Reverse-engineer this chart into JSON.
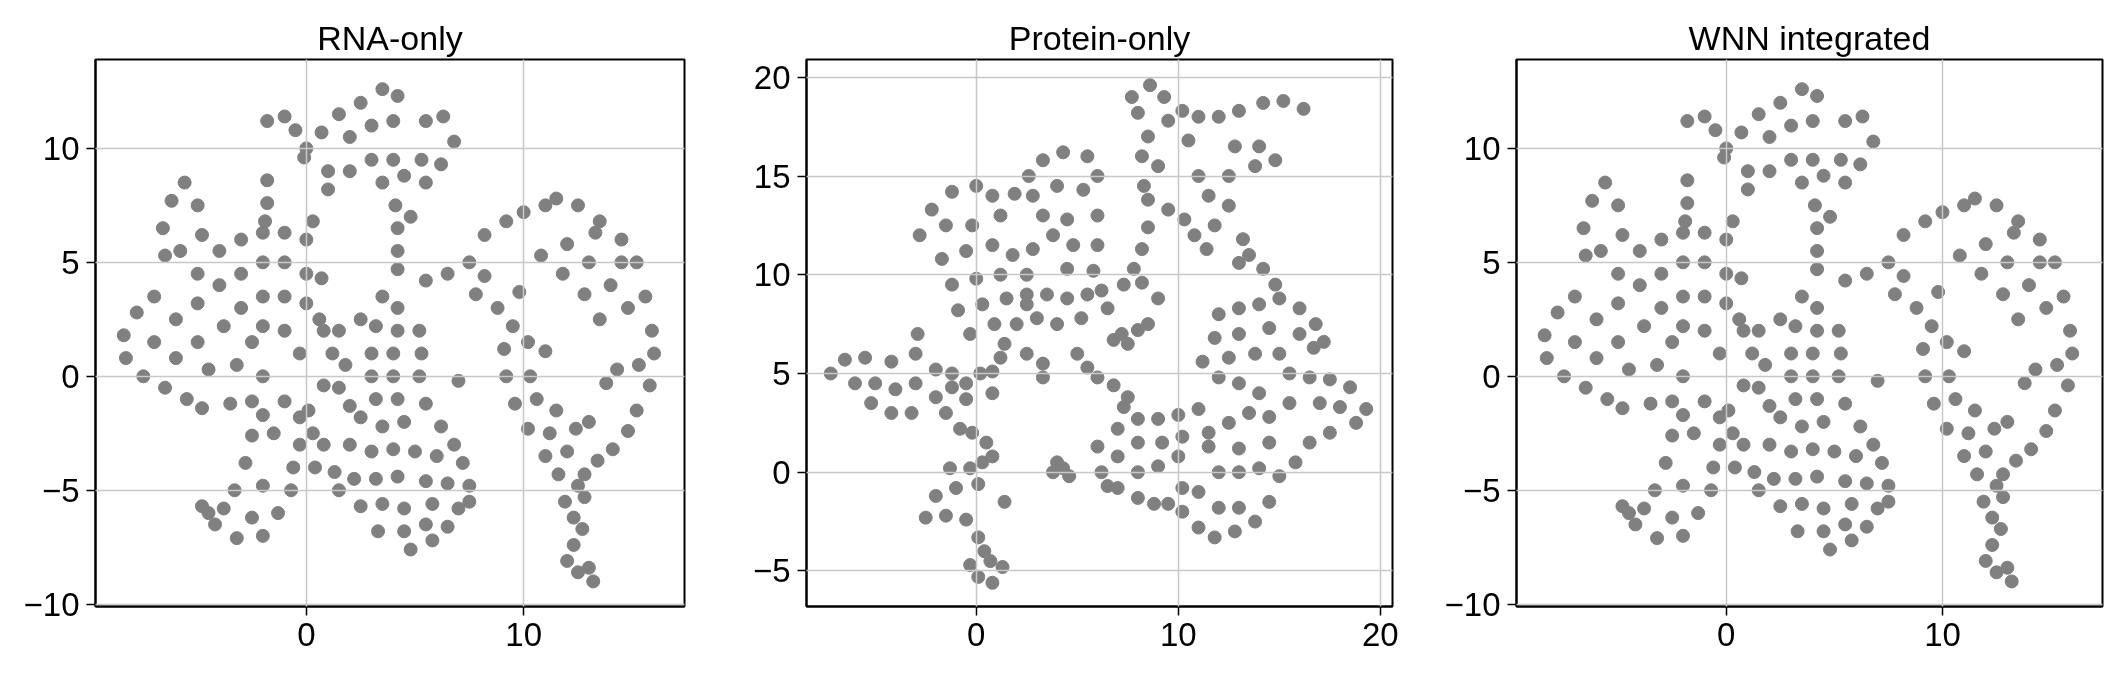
{
  "chart_data": [
    {
      "type": "scatter",
      "title": "RNA-only",
      "color": "#808080",
      "marker": "circle",
      "grid": true,
      "xlim": [
        -9.7,
        17.4
      ],
      "ylim": [
        -10.1,
        13.9
      ],
      "xticks": [
        0,
        10
      ],
      "yticks": [
        -10,
        -5,
        0,
        5,
        10
      ],
      "x": [
        1.5,
        2.5,
        3.5,
        4.2,
        2.0,
        3.0,
        4.0,
        3.0,
        4.0,
        3.5,
        4.5,
        5.3,
        5.5,
        6.3,
        6.8,
        6.2,
        5.5,
        2.0,
        1.0,
        1.0,
        0.7,
        -1.8,
        -1.0,
        -0.5,
        0.0,
        -0.1,
        4.1,
        4.2,
        4.2,
        4.2,
        4.8,
        -8.4,
        -8.3,
        -7.8,
        -7.5,
        -7.0,
        -7.0,
        -6.5,
        -6.0,
        -6.0,
        -5.5,
        -5.0,
        -5.0,
        -4.8,
        -4.5,
        -3.8,
        -3.5,
        -3.2,
        -2.5,
        -2.5,
        -2.0,
        -5.0,
        -4.0,
        -4.0,
        -3.0,
        -3.0,
        -3.0,
        -2.0,
        -2.0,
        -2.0,
        -2.0,
        -1.0,
        -1.0,
        -1.0,
        -1.0,
        0.0,
        0.0,
        0.0,
        0.7,
        0.6,
        -0.3,
        -6.6,
        -6.2,
        -5.6,
        -5.0,
        -4.8,
        -5.8,
        -6.5,
        -1.8,
        -1.8,
        -1.9,
        0.3,
        3.5,
        4.2,
        3.2,
        4.2,
        5.2,
        3.0,
        4.0,
        5.3,
        3.0,
        4.0,
        5.2,
        3.2,
        4.2,
        5.5,
        3.5,
        4.5,
        6.2,
        6.8,
        2.0,
        3.0,
        4.0,
        5.0,
        6.0,
        7.2,
        1.3,
        2.2,
        3.2,
        4.2,
        5.5,
        6.5,
        7.5,
        1.5,
        2.5,
        3.5,
        4.5,
        5.8,
        7.0,
        7.5,
        3.3,
        4.5,
        5.5,
        6.5,
        4.8,
        5.8,
        1.2,
        1.8,
        1.5,
        2.0,
        2.5,
        1.5,
        2.5,
        0.8,
        0.8,
        7.0,
        -1.0,
        -2.0,
        -0.3,
        -2.5,
        -1.5,
        -0.3,
        -2.8,
        -0.6,
        -2.0,
        -0.7,
        -3.3,
        -1.3,
        -2.5,
        -3.8,
        -4.8,
        -4.2,
        -3.2,
        -2.0,
        -4.5,
        0.1,
        0.3,
        0.8,
        0.4,
        5.5,
        6.5,
        7.5,
        8.2,
        9.2,
        10.0,
        11.0,
        11.5,
        12.5,
        13.5,
        14.5,
        15.2,
        15.6,
        15.9,
        16.0,
        10.8,
        11.8,
        12.8,
        13.5,
        12.0,
        13.0,
        14.0,
        14.8,
        13.3,
        14.5,
        15.3,
        14.3,
        13.8,
        15.8,
        15.2,
        14.8,
        14.1,
        13.4,
        12.8,
        9.1,
        9.2,
        10.3,
        9.6,
        10.6,
        11.5,
        10.2,
        11.2,
        12.4,
        13.0,
        11.0,
        12.0,
        11.6,
        12.5,
        11.9,
        12.8,
        12.3,
        12.7,
        12.3,
        12.0,
        12.5,
        13.2,
        13.0,
        8.2,
        8.8,
        9.5,
        10.2,
        7.8,
        11.0,
        9.8
      ],
      "values": [
        11.5,
        12.0,
        12.6,
        12.3,
        10.5,
        11.0,
        11.2,
        9.5,
        9.5,
        8.5,
        8.8,
        9.5,
        11.2,
        11.4,
        10.3,
        9.3,
        8.5,
        9.0,
        9.0,
        8.2,
        10.7,
        11.2,
        11.4,
        10.8,
        10.0,
        9.6,
        7.5,
        6.5,
        5.5,
        4.7,
        7.0,
        1.8,
        0.8,
        2.8,
        0.0,
        3.5,
        1.5,
        -0.5,
        2.5,
        0.8,
        -1.0,
        3.2,
        1.5,
        -1.4,
        0.3,
        2.2,
        -1.2,
        0.5,
        -1.1,
        1.5,
        0.0,
        4.5,
        5.5,
        4.0,
        6.0,
        4.5,
        3.0,
        6.3,
        5.0,
        3.5,
        2.2,
        6.3,
        5.0,
        3.5,
        2.0,
        6.0,
        4.5,
        3.2,
        4.3,
        2.5,
        1.0,
        6.5,
        7.7,
        8.5,
        7.5,
        6.2,
        5.5,
        5.3,
        8.6,
        7.6,
        6.8,
        6.8,
        3.5,
        3.0,
        2.2,
        2.0,
        2.0,
        1.0,
        1.0,
        1.0,
        0.0,
        0.0,
        0.0,
        -1.0,
        -1.0,
        -1.2,
        -2.2,
        -2.0,
        -2.2,
        -3.0,
        -3.0,
        -3.3,
        -3.2,
        -3.3,
        -3.5,
        -3.8,
        -4.2,
        -4.5,
        -4.5,
        -4.4,
        -4.6,
        -4.7,
        -4.8,
        -5.0,
        -5.7,
        -5.6,
        -5.8,
        -5.6,
        -5.8,
        -5.5,
        -6.8,
        -6.8,
        -6.5,
        -6.6,
        -7.6,
        -7.2,
        1.0,
        0.5,
        -0.5,
        -1.3,
        -1.8,
        2.0,
        2.5,
        2.0,
        -0.4,
        -0.2,
        -1.1,
        -1.7,
        -1.8,
        -2.6,
        -2.5,
        -3.0,
        -3.8,
        -4.0,
        -4.8,
        -5.0,
        -5.0,
        -6.0,
        -6.2,
        -5.8,
        -5.7,
        -6.5,
        -7.1,
        -7.0,
        -6.0,
        -1.5,
        -2.5,
        -3.0,
        -4.0,
        4.2,
        4.5,
        5.0,
        6.2,
        6.8,
        7.2,
        7.5,
        7.8,
        7.5,
        6.8,
        6.0,
        5.0,
        3.5,
        2.0,
        1.0,
        5.3,
        4.5,
        3.6,
        2.5,
        5.8,
        5.0,
        4.0,
        3.0,
        6.3,
        5.0,
        0.5,
        0.3,
        -0.3,
        -0.4,
        -1.5,
        -2.4,
        -3.2,
        -3.7,
        -4.3,
        1.2,
        0.0,
        0.0,
        -1.2,
        -1.0,
        -1.5,
        -2.3,
        -2.5,
        -2.3,
        -2.0,
        -3.5,
        -3.3,
        -4.3,
        -4.8,
        -5.5,
        -5.3,
        -6.2,
        -6.7,
        -7.4,
        -8.1,
        -8.6,
        -9.0,
        -8.4,
        4.4,
        3.0,
        2.2,
        1.5,
        3.6,
        1.1,
        3.7
      ]
    },
    {
      "type": "scatter",
      "title": "Protein-only",
      "color": "#808080",
      "marker": "circle",
      "grid": true,
      "xlim": [
        -8.4,
        20.6
      ],
      "ylim": [
        -6.8,
        20.9
      ],
      "xticks": [
        0,
        10,
        20
      ],
      "yticks": [
        -5,
        0,
        5,
        10,
        15,
        20
      ],
      "x": [
        7.7,
        8.6,
        9.3,
        8.0,
        8.5,
        9.5,
        10.2,
        11.0,
        12.0,
        13.0,
        14.2,
        15.2,
        16.2,
        8.2,
        9.0,
        10.5,
        12.8,
        14.0,
        14.8,
        11.0,
        12.5,
        13.8,
        11.5,
        12.5,
        11.8,
        11.4,
        8.3,
        8.5,
        9.5,
        10.3,
        10.8,
        -2.8,
        -2.2,
        -1.2,
        0.0,
        0.8,
        1.2,
        -1.5,
        -0.2,
        -1.7,
        -0.5,
        0.8,
        1.8,
        -1.2,
        0.0,
        1.2,
        2.5,
        -0.9,
        0.3,
        1.5,
        2.5,
        -0.3,
        0.9,
        2.0,
        2.6,
        3.3,
        4.3,
        5.5,
        6.0,
        2.8,
        4.0,
        5.3,
        3.3,
        4.5,
        6.0,
        3.8,
        4.8,
        6.0,
        4.5,
        5.8,
        2.8,
        1.9,
        2.5,
        3.5,
        4.5,
        5.5,
        6.2,
        3.0,
        4.0,
        5.2,
        6.5,
        7.2,
        7.5,
        8.0,
        8.5,
        9.0,
        8.2,
        7.3,
        1.4,
        1.2,
        2.5,
        3.3,
        3.3,
        5.0,
        5.5,
        6.0,
        6.8,
        7.5,
        7.3,
        6.8,
        7.8,
        8.2,
        8.5,
        -7.2,
        -6.5,
        -6.0,
        -5.5,
        -5.0,
        -5.2,
        -4.2,
        -4.0,
        -4.2,
        -3.0,
        -2.9,
        -3.0,
        -3.2,
        -2.0,
        -2.0,
        -1.5,
        -1.2,
        -1.2,
        -0.5,
        0.2,
        0.8,
        0.8,
        -0.5,
        -0.8,
        -0.2,
        0.5,
        0.8,
        0.3,
        -1.3,
        -0.3,
        -2.0,
        -1.0,
        0.1,
        -2.5,
        -1.5,
        -0.5,
        0.1,
        0.4,
        -0.3,
        0.7,
        1.3,
        0.1,
        0.8,
        1.4,
        4.0,
        3.8,
        4.3,
        4.6,
        6.0,
        6.2,
        7.0,
        7.0,
        7.0,
        8.0,
        8.0,
        8.0,
        8.0,
        9.0,
        9.2,
        9.0,
        6.5,
        10.0,
        11.0,
        10.2,
        10.0,
        8.8,
        9.5,
        10.2,
        10.2,
        11.0,
        11.8,
        12.8,
        13.8,
        14.5,
        15.0,
        11.0,
        12.0,
        13.0,
        12.0,
        13.0,
        14.0,
        11.5,
        13.0,
        14.5,
        12.0,
        13.0,
        14.0,
        15.0,
        16.0,
        16.8,
        17.2,
        11.8,
        13.0,
        14.5,
        16.0,
        11.2,
        12.5,
        13.8,
        15.0,
        16.7,
        15.5,
        16.5,
        17.5,
        18.5,
        19.3,
        18.8,
        17.5,
        16.5,
        15.8,
        15.5,
        17.0,
        18.0,
        14.0,
        13.0,
        12.0,
        13.5,
        14.5,
        12.5,
        11.5,
        13.2,
        13.5,
        13.0,
        14.2,
        14.8
      ],
      "values": [
        19.0,
        19.6,
        19.0,
        18.2,
        17.0,
        17.8,
        18.3,
        18.0,
        18.0,
        18.3,
        18.7,
        18.8,
        18.4,
        16.0,
        15.5,
        16.8,
        16.5,
        16.5,
        15.8,
        15.0,
        15.0,
        15.5,
        14.0,
        13.5,
        12.5,
        11.3,
        14.5,
        13.8,
        13.3,
        12.8,
        12.0,
        12.0,
        13.3,
        14.2,
        14.5,
        14.0,
        13.0,
        12.5,
        12.5,
        10.8,
        11.2,
        11.5,
        11.0,
        9.5,
        9.8,
        10.0,
        10.0,
        8.2,
        8.5,
        8.8,
        8.5,
        7.0,
        7.5,
        7.5,
        15.0,
        15.8,
        16.2,
        16.0,
        15.0,
        14.0,
        14.5,
        14.3,
        13.0,
        12.8,
        13.0,
        12.0,
        11.5,
        11.5,
        10.3,
        10.2,
        11.3,
        14.1,
        9.0,
        9.0,
        8.8,
        9.0,
        9.2,
        7.8,
        7.5,
        7.8,
        8.3,
        7.0,
        6.5,
        7.2,
        7.5,
        8.8,
        9.6,
        9.5,
        6.5,
        5.8,
        6.0,
        5.5,
        4.8,
        6.0,
        5.3,
        4.8,
        4.4,
        3.8,
        3.3,
        6.7,
        10.3,
        11.3,
        12.4,
        5.0,
        5.7,
        4.5,
        5.8,
        4.5,
        3.5,
        5.6,
        4.2,
        3.0,
        6.0,
        7.0,
        4.5,
        3.0,
        5.2,
        3.8,
        3.0,
        4.3,
        5.0,
        4.5,
        5.0,
        5.1,
        4.0,
        3.7,
        2.2,
        2.0,
        1.5,
        0.8,
        0.5,
        0.2,
        0.2,
        -1.2,
        -0.8,
        -0.6,
        -2.3,
        -2.2,
        -2.4,
        -3.3,
        -4.0,
        -4.7,
        -4.5,
        -4.8,
        -5.3,
        -5.6,
        -1.5,
        0.5,
        0.0,
        0.2,
        -0.2,
        1.3,
        0.0,
        2.2,
        0.8,
        -0.8,
        2.7,
        1.5,
        0.0,
        -1.3,
        2.7,
        1.5,
        0.3,
        -0.7,
        2.9,
        3.2,
        1.8,
        0.8,
        -1.6,
        -1.6,
        -0.8,
        -2.0,
        -2.8,
        -3.3,
        -3.0,
        -2.5,
        -1.5,
        -0.2,
        -1.0,
        -1.8,
        -1.8,
        0.0,
        0.0,
        0.2,
        1.3,
        1.2,
        1.5,
        8.0,
        8.3,
        8.5,
        8.8,
        8.3,
        7.5,
        6.6,
        6.8,
        7.0,
        7.3,
        7.0,
        5.6,
        5.8,
        6.0,
        6.0,
        6.3,
        5.0,
        4.8,
        4.7,
        4.3,
        3.2,
        2.5,
        2.0,
        1.5,
        0.5,
        3.5,
        3.5,
        3.3,
        4.0,
        4.5,
        4.8,
        3.0,
        2.8,
        2.5,
        2.0,
        11.8,
        11.0,
        10.6,
        10.3,
        9.5
      ]
    },
    {
      "type": "scatter",
      "title": "WNN integrated",
      "color": "#808080",
      "marker": "circle",
      "grid": true,
      "xlim": [
        -9.7,
        17.4
      ],
      "ylim": [
        -10.1,
        13.9
      ],
      "xticks": [
        0,
        10
      ],
      "yticks": [
        -10,
        -5,
        0,
        5,
        10
      ],
      "x": [
        1.5,
        2.5,
        3.5,
        4.2,
        2.0,
        3.0,
        4.0,
        3.0,
        4.0,
        3.5,
        4.5,
        5.3,
        5.5,
        6.3,
        6.8,
        6.2,
        5.5,
        2.0,
        1.0,
        1.0,
        0.7,
        -1.8,
        -1.0,
        -0.5,
        0.0,
        -0.1,
        4.1,
        4.2,
        4.2,
        4.2,
        4.8,
        -8.4,
        -8.3,
        -7.8,
        -7.5,
        -7.0,
        -7.0,
        -6.5,
        -6.0,
        -6.0,
        -5.5,
        -5.0,
        -5.0,
        -4.8,
        -4.5,
        -3.8,
        -3.5,
        -3.2,
        -2.5,
        -2.5,
        -2.0,
        -5.0,
        -4.0,
        -4.0,
        -3.0,
        -3.0,
        -3.0,
        -2.0,
        -2.0,
        -2.0,
        -2.0,
        -1.0,
        -1.0,
        -1.0,
        -1.0,
        0.0,
        0.0,
        0.0,
        0.7,
        0.6,
        -0.3,
        -6.6,
        -6.2,
        -5.6,
        -5.0,
        -4.8,
        -5.8,
        -6.5,
        -1.8,
        -1.8,
        -1.9,
        0.3,
        3.5,
        4.2,
        3.2,
        4.2,
        5.2,
        3.0,
        4.0,
        5.3,
        3.0,
        4.0,
        5.2,
        3.2,
        4.2,
        5.5,
        3.5,
        4.5,
        6.2,
        6.8,
        2.0,
        3.0,
        4.0,
        5.0,
        6.0,
        7.2,
        1.3,
        2.2,
        3.2,
        4.2,
        5.5,
        6.5,
        7.5,
        1.5,
        2.5,
        3.5,
        4.5,
        5.8,
        7.0,
        7.5,
        3.3,
        4.5,
        5.5,
        6.5,
        4.8,
        5.8,
        1.2,
        1.8,
        1.5,
        2.0,
        2.5,
        1.5,
        2.5,
        0.8,
        0.8,
        7.0,
        -1.0,
        -2.0,
        -0.3,
        -2.5,
        -1.5,
        -0.3,
        -2.8,
        -0.6,
        -2.0,
        -0.7,
        -3.3,
        -1.3,
        -2.5,
        -3.8,
        -4.8,
        -4.2,
        -3.2,
        -2.0,
        -4.5,
        0.1,
        0.3,
        0.8,
        0.4,
        5.5,
        6.5,
        7.5,
        8.2,
        9.2,
        10.0,
        11.0,
        11.5,
        12.5,
        13.5,
        14.5,
        15.2,
        15.6,
        15.9,
        16.0,
        10.8,
        11.8,
        12.8,
        13.5,
        12.0,
        13.0,
        14.0,
        14.8,
        13.3,
        14.5,
        15.3,
        14.3,
        13.8,
        15.8,
        15.2,
        14.8,
        14.1,
        13.4,
        12.8,
        9.1,
        9.2,
        10.3,
        9.6,
        10.6,
        11.5,
        10.2,
        11.2,
        12.4,
        13.0,
        11.0,
        12.0,
        11.6,
        12.5,
        11.9,
        12.8,
        12.3,
        12.7,
        12.3,
        12.0,
        12.5,
        13.2,
        13.0,
        8.2,
        8.8,
        9.5,
        10.2,
        7.8,
        11.0,
        9.8
      ],
      "values": [
        11.5,
        12.0,
        12.6,
        12.3,
        10.5,
        11.0,
        11.2,
        9.5,
        9.5,
        8.5,
        8.8,
        9.5,
        11.2,
        11.4,
        10.3,
        9.3,
        8.5,
        9.0,
        9.0,
        8.2,
        10.7,
        11.2,
        11.4,
        10.8,
        10.0,
        9.6,
        7.5,
        6.5,
        5.5,
        4.7,
        7.0,
        1.8,
        0.8,
        2.8,
        0.0,
        3.5,
        1.5,
        -0.5,
        2.5,
        0.8,
        -1.0,
        3.2,
        1.5,
        -1.4,
        0.3,
        2.2,
        -1.2,
        0.5,
        -1.1,
        1.5,
        0.0,
        4.5,
        5.5,
        4.0,
        6.0,
        4.5,
        3.0,
        6.3,
        5.0,
        3.5,
        2.2,
        6.3,
        5.0,
        3.5,
        2.0,
        6.0,
        4.5,
        3.2,
        4.3,
        2.5,
        1.0,
        6.5,
        7.7,
        8.5,
        7.5,
        6.2,
        5.5,
        5.3,
        8.6,
        7.6,
        6.8,
        6.8,
        3.5,
        3.0,
        2.2,
        2.0,
        2.0,
        1.0,
        1.0,
        1.0,
        0.0,
        0.0,
        0.0,
        -1.0,
        -1.0,
        -1.2,
        -2.2,
        -2.0,
        -2.2,
        -3.0,
        -3.0,
        -3.3,
        -3.2,
        -3.3,
        -3.5,
        -3.8,
        -4.2,
        -4.5,
        -4.5,
        -4.4,
        -4.6,
        -4.7,
        -4.8,
        -5.0,
        -5.7,
        -5.6,
        -5.8,
        -5.6,
        -5.8,
        -5.5,
        -6.8,
        -6.8,
        -6.5,
        -6.6,
        -7.6,
        -7.2,
        1.0,
        0.5,
        -0.5,
        -1.3,
        -1.8,
        2.0,
        2.5,
        2.0,
        -0.4,
        -0.2,
        -1.1,
        -1.7,
        -1.8,
        -2.6,
        -2.5,
        -3.0,
        -3.8,
        -4.0,
        -4.8,
        -5.0,
        -5.0,
        -6.0,
        -6.2,
        -5.8,
        -5.7,
        -6.5,
        -7.1,
        -7.0,
        -6.0,
        -1.5,
        -2.5,
        -3.0,
        -4.0,
        4.2,
        4.5,
        5.0,
        6.2,
        6.8,
        7.2,
        7.5,
        7.8,
        7.5,
        6.8,
        6.0,
        5.0,
        3.5,
        2.0,
        1.0,
        5.3,
        4.5,
        3.6,
        2.5,
        5.8,
        5.0,
        4.0,
        3.0,
        6.3,
        5.0,
        0.5,
        0.3,
        -0.3,
        -0.4,
        -1.5,
        -2.4,
        -3.2,
        -3.7,
        -4.3,
        1.2,
        0.0,
        0.0,
        -1.2,
        -1.0,
        -1.5,
        -2.3,
        -2.5,
        -2.3,
        -2.0,
        -3.5,
        -3.3,
        -4.3,
        -4.8,
        -5.5,
        -5.3,
        -6.2,
        -6.7,
        -7.4,
        -8.1,
        -8.6,
        -9.0,
        -8.4,
        4.4,
        3.0,
        2.2,
        1.5,
        3.6,
        1.1,
        3.7
      ]
    }
  ]
}
